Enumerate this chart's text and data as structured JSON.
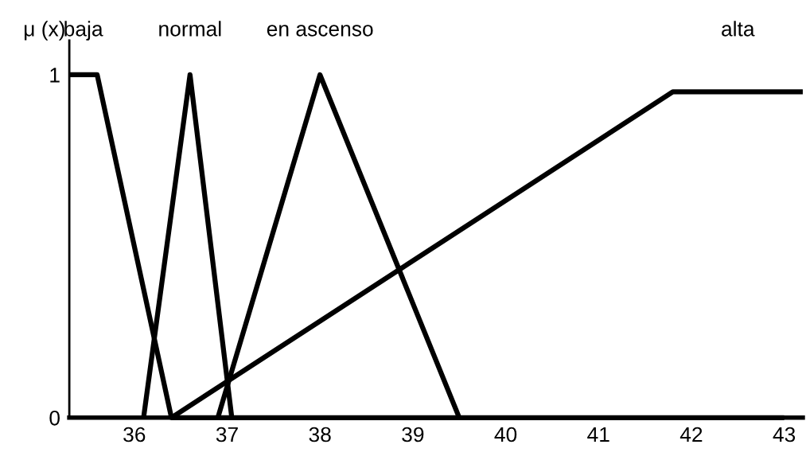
{
  "chart_data": {
    "type": "line",
    "ylabel": "μ (x)",
    "series": [
      {
        "name": "baja",
        "color": "#000000",
        "x": [
          35.3,
          35.6,
          36.4,
          43.0
        ],
        "values": [
          1,
          1,
          0,
          0
        ]
      },
      {
        "name": "normal",
        "color": "#000000",
        "x": [
          36.1,
          36.6,
          37.05
        ],
        "values": [
          0,
          1,
          0
        ]
      },
      {
        "name": "en ascenso",
        "color": "#000000",
        "x": [
          36.9,
          38.0,
          39.5
        ],
        "values": [
          0,
          1,
          0
        ]
      },
      {
        "name": "alta",
        "color": "#000000",
        "x": [
          36.4,
          41.8,
          43.2
        ],
        "values": [
          0,
          0.95,
          0.95
        ]
      }
    ],
    "xlim": [
      35.3,
      43.2
    ],
    "xticks": [
      36,
      37,
      38,
      39,
      40,
      41,
      42,
      43
    ],
    "ylim": [
      0,
      1.1
    ],
    "yticks": [
      0,
      1
    ],
    "grid": false,
    "legend": false,
    "marker": "none",
    "line_style": "solid"
  }
}
